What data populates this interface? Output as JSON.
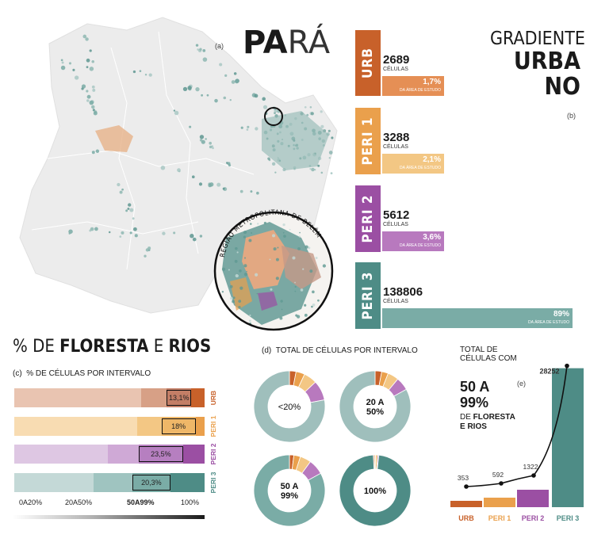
{
  "title": {
    "bold": "PA",
    "light": "RÁ"
  },
  "panel_labels": {
    "a": "(a)",
    "b": "(b)",
    "c": "(c)",
    "d": "(d)",
    "e": "(e)"
  },
  "map": {
    "metro_label": "REGIÃO METROPOLITANA DE BELÉM"
  },
  "gradient_title": {
    "line1": "GRADIENTE",
    "line2": "URBA",
    "line3": "NO"
  },
  "chart_data": [
    {
      "type": "bar",
      "panel": "b",
      "categories": [
        "URB",
        "PERI 1",
        "PERI 2",
        "PERI 3"
      ],
      "values": [
        2689,
        3288,
        5612,
        138806
      ],
      "value_unit": "CÉLULAS",
      "percent_labels": [
        "1,7%",
        "2,1%",
        "3,6%",
        "89%"
      ],
      "percent_values": [
        1.7,
        2.1,
        3.6,
        89
      ],
      "percent_captions": [
        "DA ÁREA DE ESTUDO",
        "DA ÁREA DE ESTUDO",
        "DA ÁREA DE ESTUDO",
        "DA ÁREA DE ESTUDO"
      ],
      "colors": [
        "#c8612a",
        "#eaa04c",
        "#9b4fa3",
        "#4e8c86"
      ],
      "colors_light": [
        "#e58f55",
        "#f3c784",
        "#b879be",
        "#7aaca6"
      ]
    },
    {
      "type": "bar",
      "panel": "c",
      "title": {
        "prefix": "% DE ",
        "b1": "FLORESTA",
        "mid": " E ",
        "b2": "RIOS"
      },
      "subtitle": "% DE CÉLULAS POR INTERVALO",
      "categories": [
        "URB",
        "PERI 1",
        "PERI 2",
        "PERI 3"
      ],
      "highlight_labels": [
        "13,1%",
        "18%",
        "23,5%",
        "20,3%"
      ],
      "highlight_values": [
        13.1,
        18,
        23.5,
        20.3
      ],
      "segments": [
        [
          0.665,
          0.135,
          0.131,
          0.069
        ],
        [
          0.644,
          0.129,
          0.18,
          0.047
        ],
        [
          0.491,
          0.162,
          0.235,
          0.112
        ],
        [
          0.416,
          0.203,
          0.203,
          0.178
        ]
      ],
      "segment_colors": [
        [
          "#e9c4b1",
          "#d7a086",
          "#c37e66",
          "#c8612a"
        ],
        [
          "#f8dcb2",
          "#f3c784",
          "#efb768",
          "#eaa04c"
        ],
        [
          "#dec7e3",
          "#cfa9d6",
          "#b67fc0",
          "#9b4fa3"
        ],
        [
          "#c4d9d7",
          "#9fc4c0",
          "#7aaca6",
          "#4e8c86"
        ]
      ],
      "x_labels": [
        "0A20%",
        "20A50%",
        "50A99%",
        "100%"
      ]
    },
    {
      "type": "pie",
      "panel": "d",
      "title": "TOTAL DE CÉLULAS POR INTERVALO",
      "donuts": [
        {
          "label": "<20%",
          "label_lines": [
            "<20%"
          ],
          "slices": [
            0.03,
            0.04,
            0.06,
            0.09,
            0.78
          ]
        },
        {
          "label": "20 A 50%",
          "label_lines": [
            "20 A",
            "50%"
          ],
          "slices": [
            0.03,
            0.03,
            0.05,
            0.06,
            0.83
          ]
        },
        {
          "label": "50 A 99%",
          "label_lines": [
            "50 A",
            "99%"
          ],
          "slices": [
            0.02,
            0.03,
            0.05,
            0.07,
            0.83
          ]
        },
        {
          "label": "100%",
          "label_lines": [
            "100%"
          ],
          "slices": [
            0.005,
            0.005,
            0.01,
            0.005,
            0.975
          ]
        }
      ],
      "slice_colors": [
        "#c8612a",
        "#eaa04c",
        "#f3c784",
        "#b879be",
        "#9fbfbc"
      ],
      "slice_colors_last": [
        "#c8612a",
        "#eaa04c",
        "#f3c784",
        "#9b4fa3",
        "#4e8c86"
      ]
    },
    {
      "type": "line",
      "panel": "e",
      "title_lines": [
        "TOTAL DE",
        "CÉLULAS COM"
      ],
      "big_lines": [
        "50 A",
        "99%"
      ],
      "sub_prefix": "DE ",
      "sub_bold1": "FLORESTA",
      "sub_bold2": "E RIOS",
      "categories": [
        "URB",
        "PERI 1",
        "PERI 2",
        "PERI 3"
      ],
      "values": [
        353,
        592,
        1322,
        28252
      ],
      "value_labels": [
        "353",
        "592",
        "1322",
        "28252"
      ],
      "colors": [
        "#c8612a",
        "#eaa04c",
        "#9b4fa3",
        "#4e8c86"
      ],
      "ylim": [
        0,
        29000
      ]
    }
  ]
}
